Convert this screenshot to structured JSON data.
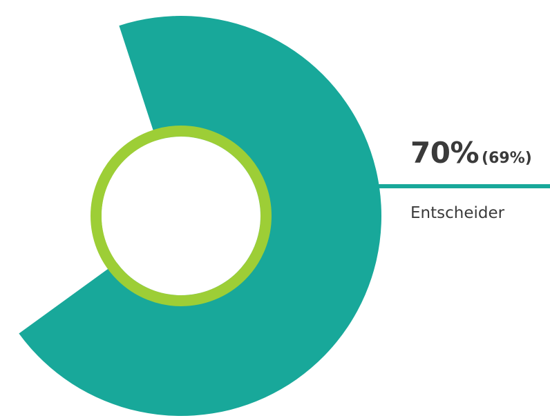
{
  "colors": {
    "slice": "#18a89a",
    "ring": "#9dce36",
    "text": "#3a3a3a",
    "background": "#ffffff"
  },
  "chart_data": {
    "type": "pie",
    "categories": [
      "Entscheider"
    ],
    "values": [
      70
    ],
    "comparison_values": [
      69
    ],
    "labels": {
      "value": "70%",
      "comparison": "(69%)",
      "category": "Entscheider"
    }
  }
}
